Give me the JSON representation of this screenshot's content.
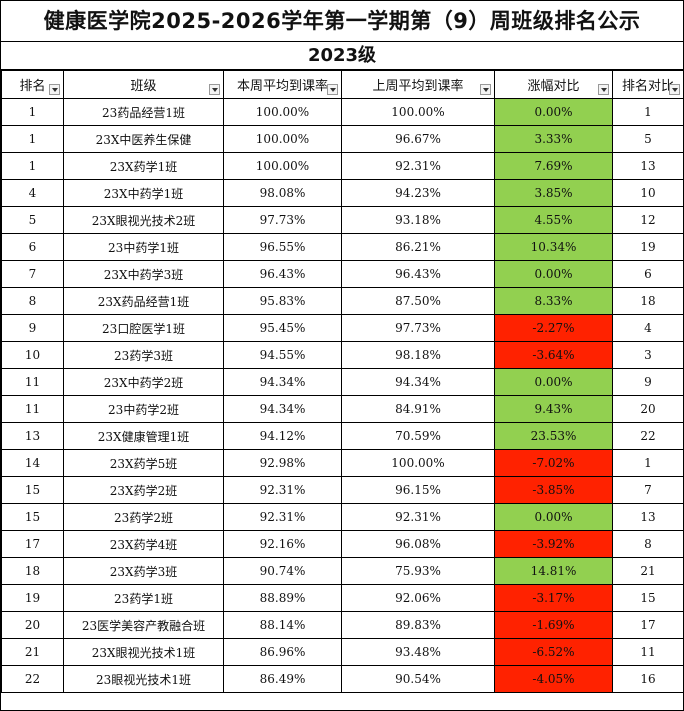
{
  "title": "健康医学院2025-2026学年第一学期第（9）周班级排名公示",
  "subtitle": "2023级",
  "columns": [
    "排名",
    "班级",
    "本周平均到课率",
    "上周平均到课率",
    "涨幅对比",
    "排名对比"
  ],
  "colors": {
    "increase": "#92d050",
    "decrease": "#ff2200"
  },
  "rows": [
    {
      "rank": "1",
      "class": "23药品经营1班",
      "this_week": "100.00%",
      "last_week": "100.00%",
      "change": "0.00%",
      "trend": "up",
      "rank_compare": "1"
    },
    {
      "rank": "1",
      "class": "23X中医养生保健",
      "this_week": "100.00%",
      "last_week": "96.67%",
      "change": "3.33%",
      "trend": "up",
      "rank_compare": "5"
    },
    {
      "rank": "1",
      "class": "23X药学1班",
      "this_week": "100.00%",
      "last_week": "92.31%",
      "change": "7.69%",
      "trend": "up",
      "rank_compare": "13"
    },
    {
      "rank": "4",
      "class": "23X中药学1班",
      "this_week": "98.08%",
      "last_week": "94.23%",
      "change": "3.85%",
      "trend": "up",
      "rank_compare": "10"
    },
    {
      "rank": "5",
      "class": "23X眼视光技术2班",
      "this_week": "97.73%",
      "last_week": "93.18%",
      "change": "4.55%",
      "trend": "up",
      "rank_compare": "12"
    },
    {
      "rank": "6",
      "class": "23中药学1班",
      "this_week": "96.55%",
      "last_week": "86.21%",
      "change": "10.34%",
      "trend": "up",
      "rank_compare": "19"
    },
    {
      "rank": "7",
      "class": "23X中药学3班",
      "this_week": "96.43%",
      "last_week": "96.43%",
      "change": "0.00%",
      "trend": "up",
      "rank_compare": "6"
    },
    {
      "rank": "8",
      "class": "23X药品经营1班",
      "this_week": "95.83%",
      "last_week": "87.50%",
      "change": "8.33%",
      "trend": "up",
      "rank_compare": "18"
    },
    {
      "rank": "9",
      "class": "23口腔医学1班",
      "this_week": "95.45%",
      "last_week": "97.73%",
      "change": "-2.27%",
      "trend": "down",
      "rank_compare": "4"
    },
    {
      "rank": "10",
      "class": "23药学3班",
      "this_week": "94.55%",
      "last_week": "98.18%",
      "change": "-3.64%",
      "trend": "down",
      "rank_compare": "3"
    },
    {
      "rank": "11",
      "class": "23X中药学2班",
      "this_week": "94.34%",
      "last_week": "94.34%",
      "change": "0.00%",
      "trend": "up",
      "rank_compare": "9"
    },
    {
      "rank": "11",
      "class": "23中药学2班",
      "this_week": "94.34%",
      "last_week": "84.91%",
      "change": "9.43%",
      "trend": "up",
      "rank_compare": "20"
    },
    {
      "rank": "13",
      "class": "23X健康管理1班",
      "this_week": "94.12%",
      "last_week": "70.59%",
      "change": "23.53%",
      "trend": "up",
      "rank_compare": "22"
    },
    {
      "rank": "14",
      "class": "23X药学5班",
      "this_week": "92.98%",
      "last_week": "100.00%",
      "change": "-7.02%",
      "trend": "down",
      "rank_compare": "1"
    },
    {
      "rank": "15",
      "class": "23X药学2班",
      "this_week": "92.31%",
      "last_week": "96.15%",
      "change": "-3.85%",
      "trend": "down",
      "rank_compare": "7"
    },
    {
      "rank": "15",
      "class": "23药学2班",
      "this_week": "92.31%",
      "last_week": "92.31%",
      "change": "0.00%",
      "trend": "up",
      "rank_compare": "13"
    },
    {
      "rank": "17",
      "class": "23X药学4班",
      "this_week": "92.16%",
      "last_week": "96.08%",
      "change": "-3.92%",
      "trend": "down",
      "rank_compare": "8"
    },
    {
      "rank": "18",
      "class": "23X药学3班",
      "this_week": "90.74%",
      "last_week": "75.93%",
      "change": "14.81%",
      "trend": "up",
      "rank_compare": "21"
    },
    {
      "rank": "19",
      "class": "23药学1班",
      "this_week": "88.89%",
      "last_week": "92.06%",
      "change": "-3.17%",
      "trend": "down",
      "rank_compare": "15"
    },
    {
      "rank": "20",
      "class": "23医学美容产教融合班",
      "this_week": "88.14%",
      "last_week": "89.83%",
      "change": "-1.69%",
      "trend": "down",
      "rank_compare": "17"
    },
    {
      "rank": "21",
      "class": "23X眼视光技术1班",
      "this_week": "86.96%",
      "last_week": "93.48%",
      "change": "-6.52%",
      "trend": "down",
      "rank_compare": "11"
    },
    {
      "rank": "22",
      "class": "23眼视光技术1班",
      "this_week": "86.49%",
      "last_week": "90.54%",
      "change": "-4.05%",
      "trend": "down",
      "rank_compare": "16"
    }
  ]
}
